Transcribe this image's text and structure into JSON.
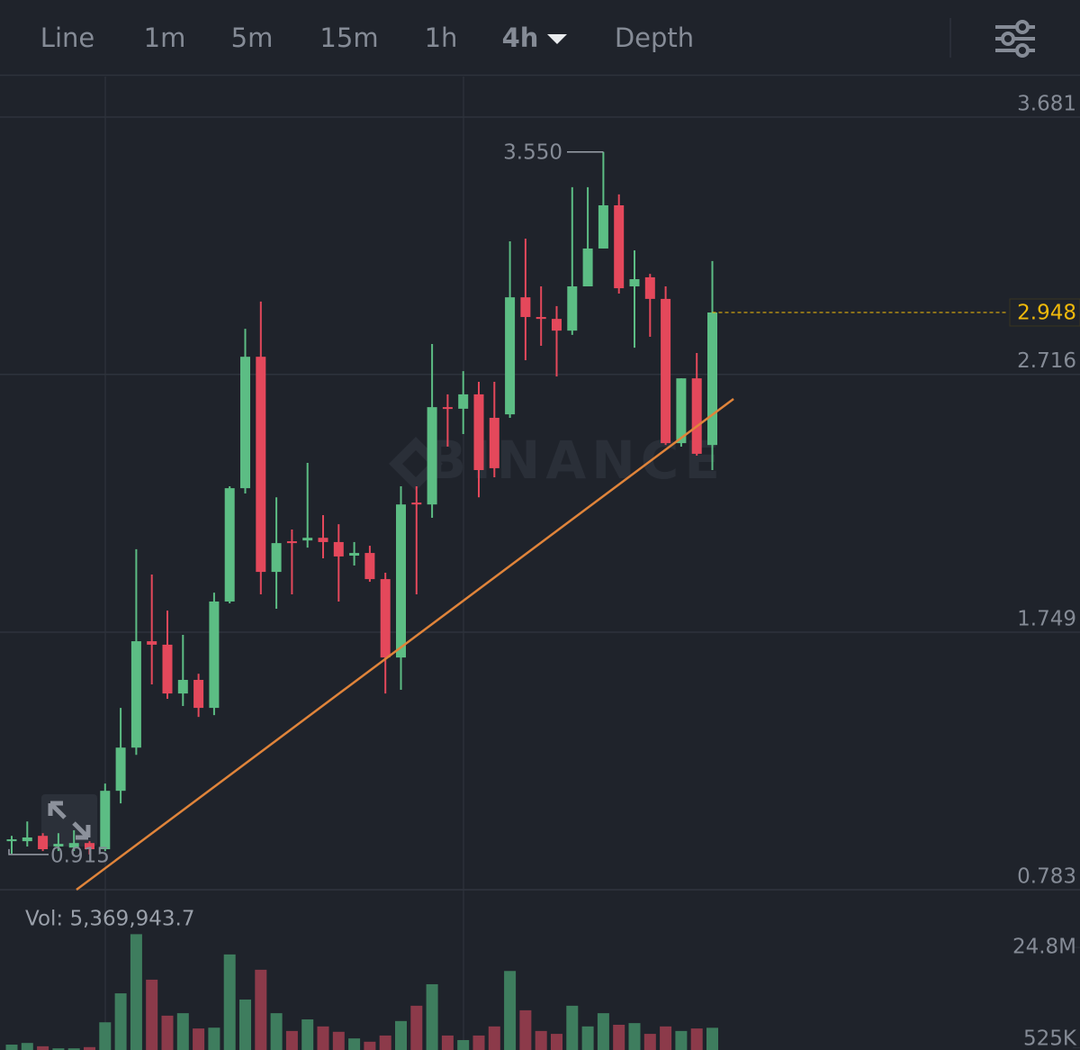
{
  "toolbar": {
    "tabs": [
      "Line",
      "1m",
      "5m",
      "15m",
      "1h",
      "4h",
      "Depth"
    ],
    "active": 5
  },
  "chart_data": {
    "type": "candlestick",
    "ylim": [
      0.783,
      3.833
    ],
    "yticks": [
      3.681,
      2.716,
      1.749,
      0.783
    ],
    "up_color": "#5cbd84",
    "down_color": "#e4485b",
    "open": [
      0.965,
      0.965,
      0.985,
      0.945,
      0.941,
      0.958,
      0.935,
      1.154,
      1.316,
      1.715,
      1.702,
      1.519,
      1.57,
      1.465,
      1.864,
      2.289,
      2.782,
      1.975,
      2.09,
      2.093,
      2.103,
      2.087,
      2.036,
      2.046,
      1.948,
      1.654,
      2.235,
      2.228,
      2.593,
      2.587,
      2.641,
      2.553,
      2.566,
      3.005,
      2.931,
      2.924,
      2.88,
      3.046,
      3.188,
      3.35,
      3.046,
      3.08,
      2.999,
      2.458,
      2.701,
      2.451
    ],
    "high": [
      0.985,
      1.039,
      0.995,
      0.995,
      1.006,
      0.965,
      1.181,
      1.465,
      2.06,
      1.965,
      1.83,
      1.739,
      1.593,
      1.897,
      2.296,
      2.887,
      2.989,
      2.255,
      2.134,
      2.384,
      2.188,
      2.154,
      2.087,
      2.073,
      1.972,
      2.296,
      2.296,
      2.83,
      2.641,
      2.728,
      2.688,
      2.688,
      3.215,
      3.225,
      3.046,
      2.972,
      3.418,
      3.418,
      3.55,
      3.391,
      3.181,
      3.093,
      3.046,
      2.701,
      2.796,
      3.141
    ],
    "low": [
      0.918,
      0.945,
      0.928,
      0.928,
      0.928,
      0.915,
      0.928,
      1.107,
      1.289,
      1.553,
      1.499,
      1.472,
      1.431,
      1.438,
      1.857,
      2.269,
      1.891,
      1.837,
      1.891,
      2.066,
      2.026,
      1.864,
      1.999,
      1.938,
      1.519,
      1.533,
      1.891,
      2.178,
      2.445,
      2.492,
      2.255,
      2.33,
      2.553,
      2.769,
      2.823,
      2.708,
      2.864,
      3.046,
      3.188,
      3.019,
      2.816,
      2.857,
      2.451,
      2.445,
      2.411,
      2.357
    ],
    "close": [
      0.972,
      0.979,
      0.935,
      0.955,
      0.958,
      0.935,
      1.154,
      1.316,
      1.715,
      1.702,
      1.519,
      1.57,
      1.465,
      1.864,
      2.289,
      2.782,
      1.975,
      2.083,
      2.083,
      2.103,
      2.087,
      2.033,
      2.046,
      1.948,
      1.654,
      2.228,
      2.228,
      2.593,
      2.587,
      2.641,
      2.357,
      2.364,
      3.005,
      2.931,
      2.924,
      2.88,
      3.046,
      3.188,
      3.35,
      3.039,
      3.073,
      2.999,
      2.458,
      2.701,
      2.418,
      2.948
    ],
    "high_label": {
      "value": 3.55,
      "label": "3.550"
    },
    "low_label": 0.915,
    "last_price": 2.948,
    "last_price_color": "#f0b90b",
    "watermark": "BINANCE",
    "trendline": {
      "x": [
        4.16,
        46.36
      ],
      "y": [
        0.783,
        2.624
      ],
      "color": "#e0843a"
    },
    "volume": {
      "title": "Vol: 5,369,943.7",
      "up_color": "#3e7d5e",
      "down_color": "#8c3a4a",
      "values": [
        1300000,
        1700000,
        900000,
        400000,
        400000,
        700000,
        6700000,
        13700000,
        28000000,
        17000000,
        8300000,
        8900000,
        5200000,
        5400000,
        23100000,
        12200000,
        19400000,
        8900000,
        4600000,
        7400000,
        5700000,
        4400000,
        2800000,
        2000000,
        3500000,
        7000000,
        10700000,
        15900000,
        3500000,
        2400000,
        3500000,
        5700000,
        19100000,
        9600000,
        4600000,
        3900000,
        10700000,
        5700000,
        8900000,
        6100000,
        6500000,
        3900000,
        5700000,
        4600000,
        5200000,
        5369943.7
      ],
      "ylim": [
        0,
        28300000
      ],
      "yticks": [
        {
          "value": 24800000,
          "label": "24.8M"
        },
        {
          "value": 525000,
          "label": "525K"
        }
      ]
    }
  }
}
